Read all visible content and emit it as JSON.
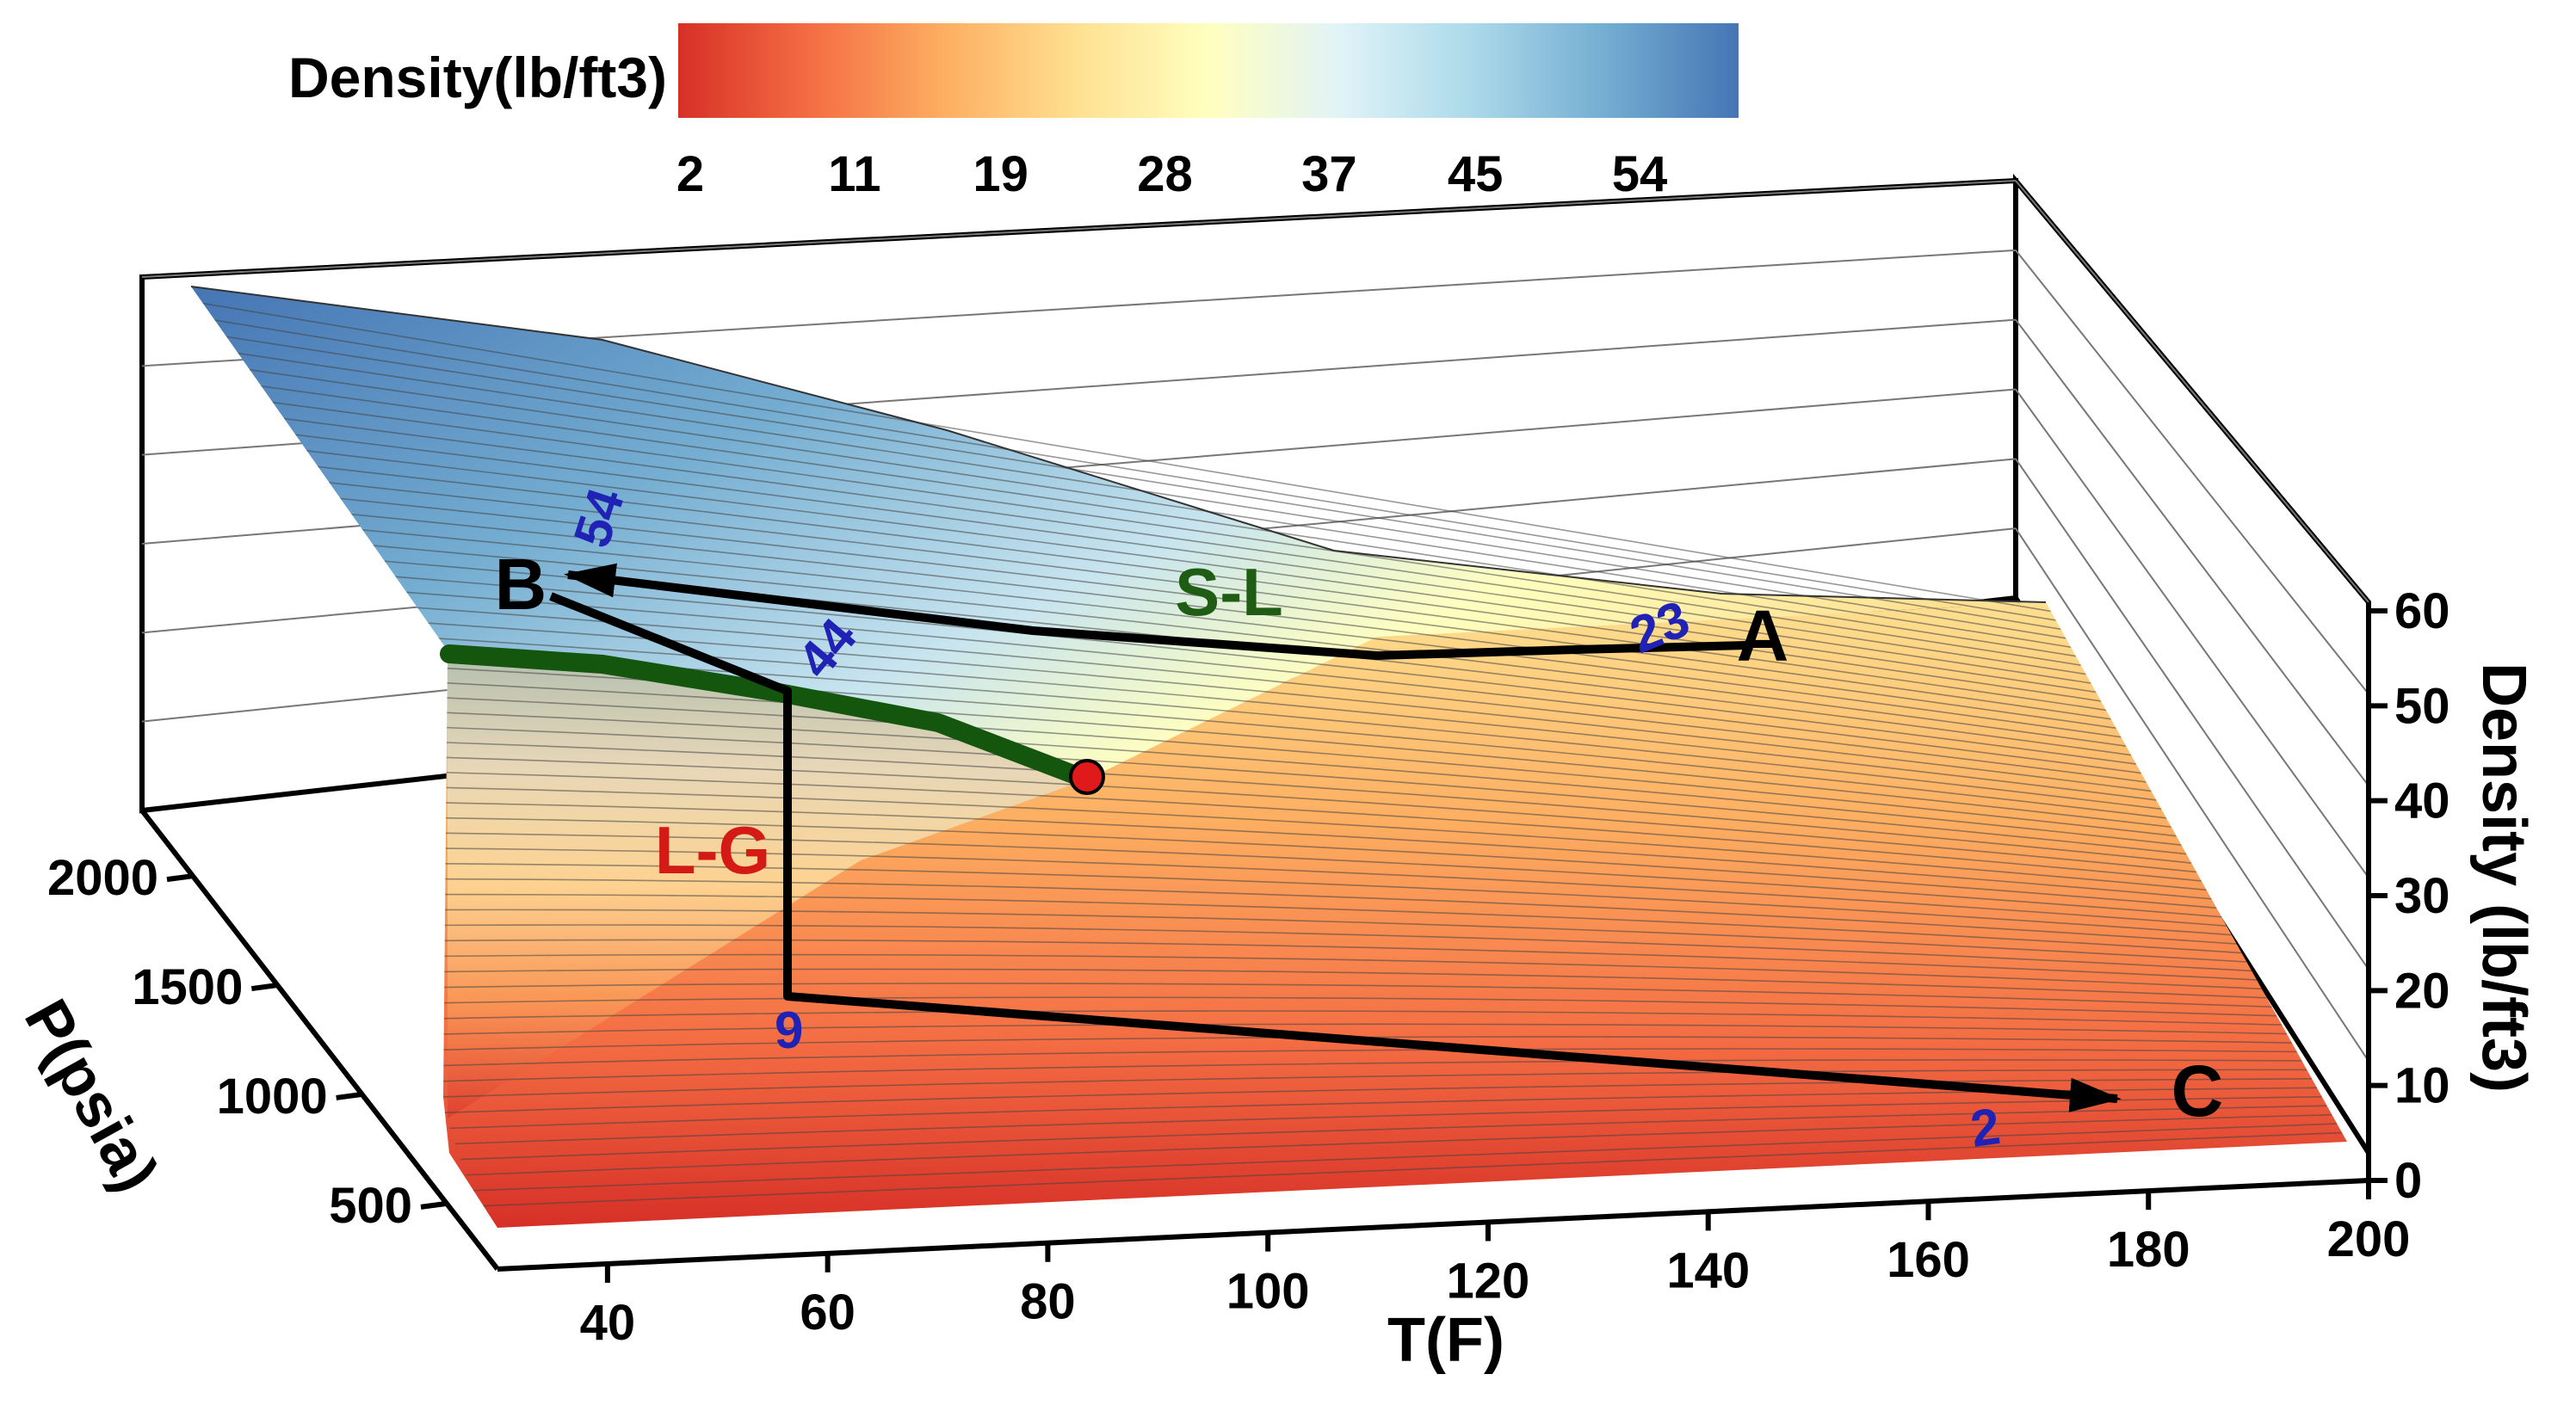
{
  "chart_data": {
    "type": "surface",
    "title": "",
    "colorbar": {
      "title": "Density(lb/ft3)",
      "ticks": [
        2,
        11,
        19,
        28,
        37,
        45,
        54
      ],
      "tick_labels": [
        "2",
        "11",
        "19",
        "28",
        "37",
        "45",
        "54"
      ],
      "range": [
        0,
        60
      ],
      "colors": [
        "#d73027",
        "#f46d43",
        "#fdae61",
        "#fee090",
        "#ffffbf",
        "#e0f3f8",
        "#abd9e9",
        "#74add1",
        "#4575b4"
      ]
    },
    "x_axis": {
      "label": "T(F)",
      "range": [
        30,
        200
      ],
      "ticks": [
        40,
        60,
        80,
        100,
        120,
        140,
        160,
        180,
        200
      ],
      "tick_labels": [
        "40",
        "60",
        "80",
        "100",
        "120",
        "140",
        "160",
        "180",
        "200"
      ]
    },
    "y_axis": {
      "label": "P(psia)",
      "range": [
        200,
        2300
      ],
      "ticks": [
        500,
        1000,
        1500,
        2000
      ],
      "tick_labels": [
        "500",
        "1000",
        "1500",
        "2000"
      ]
    },
    "z_axis": {
      "label": "Density (lb/ft3)",
      "range": [
        0,
        60
      ],
      "ticks": [
        0,
        10,
        20,
        30,
        40,
        50,
        60
      ],
      "tick_labels": [
        "0",
        "10",
        "20",
        "30",
        "40",
        "50",
        "60"
      ]
    },
    "regions": [
      {
        "label": "S-L"
      },
      {
        "label": "L-G"
      }
    ],
    "phase_boundary": {
      "name": "liquid-gas saturation curve",
      "points": [
        {
          "T": 30,
          "P": 2150
        },
        {
          "T": 55,
          "P": 1900
        },
        {
          "T": 70,
          "P": 1650
        },
        {
          "T": 82,
          "P": 1450
        }
      ],
      "critical_point": {
        "T": 82,
        "P": 1450
      }
    },
    "process_points": [
      {
        "label": "A",
        "T": 145,
        "P": 2300,
        "density": 23
      },
      {
        "label": "B",
        "T": 38,
        "P": 2300,
        "density": 54
      },
      {
        "label": "C",
        "T": 185,
        "P": 500,
        "density": 2
      }
    ],
    "paths": [
      {
        "name": "A to B (constant pressure, S-L)",
        "points": [
          {
            "T": 145,
            "P": 2300,
            "density": 23
          },
          {
            "T": 110,
            "P": 2300,
            "density": 30
          },
          {
            "T": 80,
            "P": 2300,
            "density": 40
          },
          {
            "T": 38,
            "P": 2300,
            "density": 54
          }
        ]
      },
      {
        "name": "B to C (via liquid-gas region)",
        "points": [
          {
            "T": 38,
            "P": 2300,
            "density": 54
          },
          {
            "T": 55,
            "P": 1900,
            "density": 44
          },
          {
            "T": 55,
            "P": 1200,
            "density": 9
          },
          {
            "T": 185,
            "P": 500,
            "density": 2
          }
        ]
      }
    ],
    "value_labels": [
      "54",
      "44",
      "23",
      "9",
      "2"
    ]
  }
}
